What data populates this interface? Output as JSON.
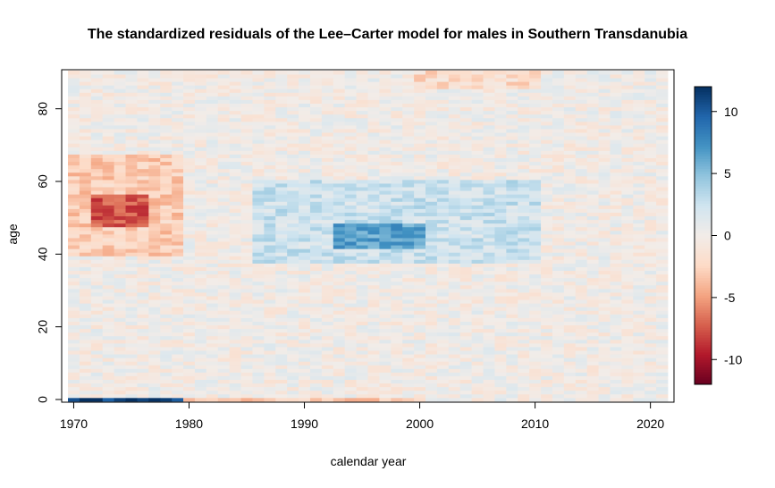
{
  "chart_data": {
    "type": "heatmap",
    "title": "The standardized residuals of the Lee–Carter model for males in Southern Transdanubia",
    "xlabel": "calendar year",
    "ylabel": "age",
    "x_range": [
      1970,
      2021
    ],
    "y_range": [
      0,
      90
    ],
    "xlim": [
      1969.5,
      2021.5
    ],
    "ylim": [
      -0.5,
      90.5
    ],
    "x_ticks": [
      1970,
      1980,
      1990,
      2000,
      2010,
      2020
    ],
    "y_ticks": [
      0,
      20,
      40,
      60,
      80
    ],
    "colorbar": {
      "range": [
        -12,
        12
      ],
      "ticks": [
        10,
        5,
        0,
        -5,
        -10
      ],
      "colors": [
        "#67001f",
        "#b2182b",
        "#d6604d",
        "#f4a582",
        "#fddbc7",
        "#f2ece8",
        "#d1e5f0",
        "#92c5de",
        "#4393c3",
        "#2166ac",
        "#053061"
      ]
    },
    "residual_regions": [
      {
        "years": [
          1970,
          1979
        ],
        "ages": [
          40,
          67
        ],
        "value": -3.0
      },
      {
        "years": [
          1972,
          1976
        ],
        "ages": [
          48,
          56
        ],
        "value": -4.5
      },
      {
        "years": [
          1986,
          2010
        ],
        "ages": [
          38,
          60
        ],
        "value": 2.5
      },
      {
        "years": [
          1993,
          2000
        ],
        "ages": [
          42,
          48
        ],
        "value": 4.0
      },
      {
        "years": [
          2000,
          2010
        ],
        "ages": [
          86,
          90
        ],
        "value": -2.0
      },
      {
        "years": [
          1970,
          1979
        ],
        "ages": [
          0,
          0
        ],
        "value": 11.0
      },
      {
        "years": [
          1980,
          2000
        ],
        "ages": [
          0,
          0
        ],
        "value": -3.0
      }
    ]
  }
}
